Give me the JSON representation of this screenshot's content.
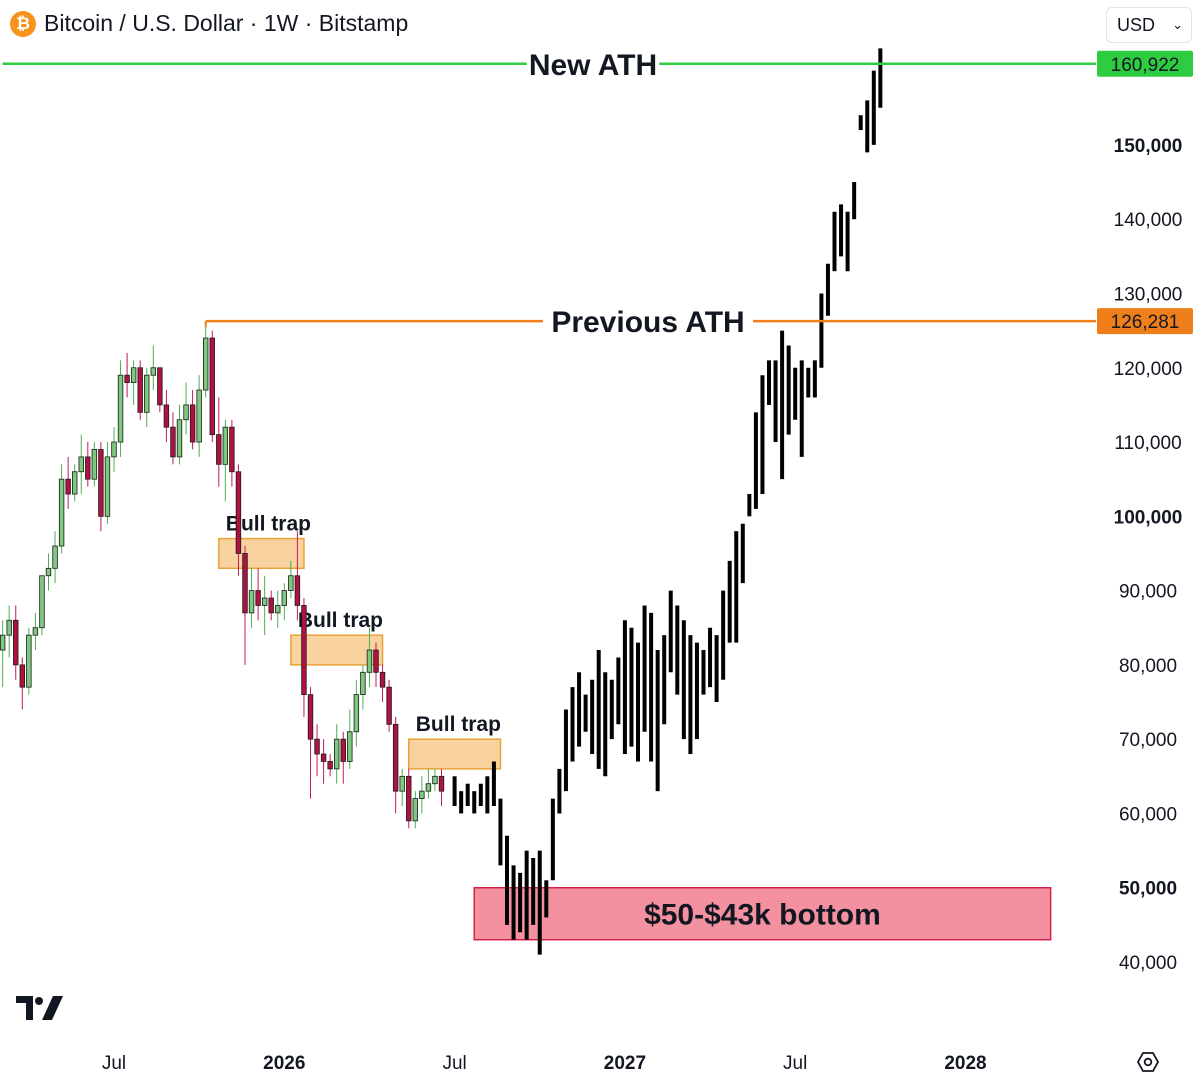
{
  "header": {
    "title": "Bitcoin / U.S. Dollar · 1W · Bitstamp",
    "icon": "bitcoin-icon",
    "icon_glyph": "₿",
    "currency": "USD"
  },
  "chart_data": {
    "type": "candlestick",
    "ylim": [
      40000,
      163000
    ],
    "y_ticks": [
      {
        "value": 40000,
        "label": "40,000",
        "bold": false
      },
      {
        "value": 50000,
        "label": "50,000",
        "bold": true
      },
      {
        "value": 60000,
        "label": "60,000",
        "bold": false
      },
      {
        "value": 70000,
        "label": "70,000",
        "bold": false
      },
      {
        "value": 80000,
        "label": "80,000",
        "bold": false
      },
      {
        "value": 90000,
        "label": "90,000",
        "bold": false
      },
      {
        "value": 100000,
        "label": "100,000",
        "bold": true
      },
      {
        "value": 110000,
        "label": "110,000",
        "bold": false
      },
      {
        "value": 120000,
        "label": "120,000",
        "bold": false
      },
      {
        "value": 130000,
        "label": "130,000",
        "bold": false
      },
      {
        "value": 140000,
        "label": "140,000",
        "bold": false
      },
      {
        "value": 150000,
        "label": "150,000",
        "bold": true
      }
    ],
    "x_ticks": [
      {
        "week": 7,
        "label": "Jul",
        "bold": false
      },
      {
        "week": 33,
        "label": "2026",
        "bold": true
      },
      {
        "week": 59,
        "label": "Jul",
        "bold": false
      },
      {
        "week": 85,
        "label": "2027",
        "bold": true
      },
      {
        "week": 111,
        "label": "Jul",
        "bold": false
      },
      {
        "week": 137,
        "label": "2028",
        "bold": true
      }
    ],
    "series": [
      {
        "kind": "historical",
        "color_up": "#4caf50",
        "color_down": "#c2185b",
        "start_week": -10,
        "ohlc": [
          [
            82000,
            86000,
            77000,
            84000
          ],
          [
            84000,
            88000,
            81000,
            86000
          ],
          [
            86000,
            88000,
            78000,
            80000
          ],
          [
            80000,
            81000,
            74000,
            77000
          ],
          [
            77000,
            85000,
            76000,
            84000
          ],
          [
            84000,
            87000,
            82000,
            85000
          ],
          [
            85000,
            92000,
            84000,
            92000
          ],
          [
            92000,
            95000,
            90000,
            93000
          ],
          [
            93000,
            98000,
            91000,
            96000
          ],
          [
            96000,
            107000,
            95000,
            105000
          ],
          [
            105000,
            108000,
            101000,
            103000
          ],
          [
            103000,
            107000,
            102000,
            106000
          ],
          [
            106000,
            111000,
            103000,
            108000
          ],
          [
            108000,
            110000,
            104000,
            105000
          ],
          [
            105000,
            110000,
            104000,
            109000
          ],
          [
            109000,
            110000,
            98000,
            100000
          ],
          [
            100000,
            110000,
            99000,
            108000
          ],
          [
            108000,
            112000,
            106000,
            110000
          ],
          [
            110000,
            121000,
            108000,
            119000
          ],
          [
            119000,
            122000,
            116000,
            118000
          ],
          [
            118000,
            121000,
            115000,
            120000
          ],
          [
            120000,
            121000,
            113000,
            114000
          ],
          [
            114000,
            120000,
            112000,
            119000
          ],
          [
            119000,
            123000,
            117000,
            120000
          ],
          [
            120000,
            120000,
            114000,
            115000
          ],
          [
            115000,
            117000,
            110000,
            112000
          ],
          [
            112000,
            114000,
            107000,
            108000
          ],
          [
            108000,
            115000,
            107000,
            113000
          ],
          [
            113000,
            118000,
            111000,
            115000
          ],
          [
            115000,
            117000,
            109000,
            110000
          ],
          [
            110000,
            119000,
            108000,
            117000
          ],
          [
            117000,
            126281,
            116000,
            124000
          ],
          [
            124000,
            125000,
            110000,
            111000
          ],
          [
            111000,
            116000,
            104000,
            107000
          ],
          [
            107000,
            113000,
            102000,
            112000
          ],
          [
            112000,
            113000,
            104000,
            106000
          ],
          [
            106000,
            107000,
            92000,
            95000
          ],
          [
            95000,
            96000,
            80000,
            87000
          ],
          [
            87000,
            93000,
            85000,
            90000
          ],
          [
            90000,
            93000,
            86000,
            88000
          ],
          [
            88000,
            92000,
            84000,
            89000
          ],
          [
            89000,
            90000,
            86000,
            87000
          ],
          [
            87000,
            90000,
            85000,
            88000
          ],
          [
            88000,
            91000,
            86000,
            90000
          ],
          [
            90000,
            94000,
            89000,
            92000
          ],
          [
            92000,
            98000,
            86000,
            88000
          ],
          [
            88000,
            89000,
            73000,
            76000
          ],
          [
            76000,
            77000,
            62000,
            70000
          ],
          [
            70000,
            72000,
            65000,
            68000
          ],
          [
            68000,
            70000,
            64000,
            67000
          ],
          [
            67000,
            68000,
            65000,
            66000
          ],
          [
            66000,
            72000,
            64000,
            70000
          ],
          [
            70000,
            71000,
            64000,
            67000
          ],
          [
            67000,
            74000,
            66000,
            71000
          ],
          [
            71000,
            78000,
            69000,
            76000
          ],
          [
            76000,
            80000,
            74000,
            79000
          ],
          [
            79000,
            85000,
            77000,
            82000
          ],
          [
            82000,
            83000,
            77000,
            79000
          ],
          [
            79000,
            80000,
            75000,
            77000
          ],
          [
            77000,
            78000,
            71000,
            72000
          ],
          [
            72000,
            73000,
            60000,
            63000
          ],
          [
            63000,
            66000,
            61000,
            65000
          ],
          [
            65000,
            66000,
            58000,
            59000
          ],
          [
            59000,
            63000,
            58000,
            62000
          ],
          [
            62000,
            65000,
            60000,
            63000
          ],
          [
            63000,
            66000,
            62000,
            64000
          ],
          [
            64000,
            66000,
            63000,
            65000
          ],
          [
            65000,
            66000,
            61000,
            63000
          ]
        ]
      },
      {
        "kind": "projection",
        "color": "#000000",
        "start_week": 59,
        "hl": [
          [
            61000,
            65000
          ],
          [
            60000,
            63000
          ],
          [
            61000,
            64000
          ],
          [
            60000,
            63000
          ],
          [
            61000,
            64000
          ],
          [
            60000,
            65000
          ],
          [
            61000,
            67000
          ],
          [
            53000,
            62000
          ],
          [
            45000,
            57000
          ],
          [
            43000,
            53000
          ],
          [
            44000,
            52000
          ],
          [
            43000,
            55000
          ],
          [
            45000,
            54000
          ],
          [
            41000,
            55000
          ],
          [
            46000,
            51000
          ],
          [
            51000,
            62000
          ],
          [
            60000,
            66000
          ],
          [
            63000,
            74000
          ],
          [
            67000,
            77000
          ],
          [
            69000,
            79000
          ],
          [
            71000,
            76000
          ],
          [
            68000,
            78000
          ],
          [
            66000,
            82000
          ],
          [
            65000,
            79000
          ],
          [
            70000,
            78000
          ],
          [
            72000,
            81000
          ],
          [
            68000,
            86000
          ],
          [
            69000,
            85000
          ],
          [
            67000,
            83000
          ],
          [
            71000,
            88000
          ],
          [
            67000,
            87000
          ],
          [
            63000,
            82000
          ],
          [
            72000,
            84000
          ],
          [
            79000,
            90000
          ],
          [
            76000,
            88000
          ],
          [
            70000,
            86000
          ],
          [
            68000,
            84000
          ],
          [
            70000,
            83000
          ],
          [
            76000,
            82000
          ],
          [
            77000,
            85000
          ],
          [
            75000,
            84000
          ],
          [
            78000,
            90000
          ],
          [
            83000,
            94000
          ],
          [
            83000,
            98000
          ],
          [
            91000,
            99000
          ],
          [
            100000,
            103000
          ],
          [
            101000,
            114000
          ],
          [
            103000,
            119000
          ],
          [
            115000,
            121000
          ],
          [
            110000,
            121000
          ],
          [
            105000,
            125000
          ],
          [
            111000,
            123000
          ],
          [
            113000,
            120000
          ],
          [
            108000,
            121000
          ],
          [
            116000,
            120000
          ],
          [
            116000,
            121000
          ],
          [
            120000,
            130000
          ],
          [
            127000,
            134000
          ],
          [
            133000,
            141000
          ],
          [
            135000,
            142000
          ],
          [
            133000,
            141000
          ],
          [
            140000,
            145000
          ],
          [
            152000,
            154000
          ],
          [
            149000,
            156000
          ],
          [
            150000,
            160000
          ],
          [
            155000,
            163000
          ]
        ]
      }
    ],
    "reference_lines": [
      {
        "label": "New ATH",
        "value": 160922,
        "price_label": "160,922",
        "color": "#2ecc40",
        "start_week": -10
      },
      {
        "label": "Previous ATH",
        "value": 126281,
        "price_label": "126,281",
        "color": "#ef7f1a",
        "start_week": 21
      }
    ],
    "zones": [
      {
        "label": "Bull trap",
        "start_week": 23,
        "end_week": 36,
        "low": 93000,
        "high": 97000,
        "color": "#f5c47f"
      },
      {
        "label": "Bull trap",
        "start_week": 34,
        "end_week": 48,
        "low": 80000,
        "high": 84000,
        "color": "#f5c47f"
      },
      {
        "label": "Bull trap",
        "start_week": 52,
        "end_week": 66,
        "low": 66000,
        "high": 70000,
        "color": "#f5c47f"
      },
      {
        "label": "$50-$43k bottom",
        "start_week": 62,
        "end_week": 150,
        "low": 43000,
        "high": 50000,
        "color": "#f28b9c"
      }
    ]
  }
}
